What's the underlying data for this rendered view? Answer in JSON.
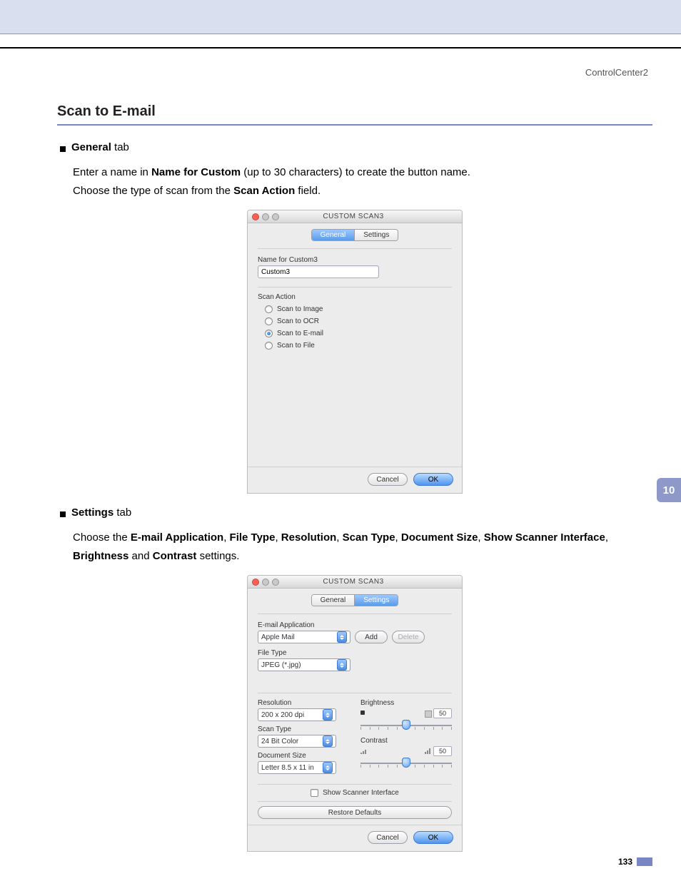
{
  "header": {
    "doc_title": "ControlCenter2"
  },
  "section": {
    "title": "Scan to E-mail"
  },
  "general_block": {
    "bullet_label_bold": "General",
    "bullet_label_rest": " tab",
    "line1_pre": "Enter a name in ",
    "line1_bold": "Name for Custom",
    "line1_post": " (up to 30 characters) to create the button name.",
    "line2_pre": "Choose the type of scan from the ",
    "line2_bold": "Scan Action",
    "line2_post": " field."
  },
  "dialog_general": {
    "title": "CUSTOM SCAN3",
    "tabs": {
      "general": "General",
      "settings": "Settings",
      "active": "general"
    },
    "name_label": "Name for Custom3",
    "name_value": "Custom3",
    "scan_action_label": "Scan Action",
    "options": [
      {
        "label": "Scan to Image",
        "checked": false
      },
      {
        "label": "Scan to OCR",
        "checked": false
      },
      {
        "label": "Scan to E-mail",
        "checked": true
      },
      {
        "label": "Scan to File",
        "checked": false
      }
    ],
    "buttons": {
      "cancel": "Cancel",
      "ok": "OK"
    }
  },
  "settings_block": {
    "bullet_label_bold": "Settings",
    "bullet_label_rest": " tab",
    "line_pre": "Choose the ",
    "b1": "E-mail Application",
    "s1": ", ",
    "b2": "File Type",
    "s2": ", ",
    "b3": "Resolution",
    "s3": ", ",
    "b4": "Scan Type",
    "s4": ", ",
    "b5": "Document Size",
    "s5": ", ",
    "b6": "Show Scanner Interface",
    "s6": ", ",
    "b7": "Brightness",
    "s7": " and ",
    "b8": "Contrast",
    "line_post": " settings."
  },
  "dialog_settings": {
    "title": "CUSTOM SCAN3",
    "tabs": {
      "general": "General",
      "settings": "Settings",
      "active": "settings"
    },
    "email_app_label": "E-mail Application",
    "email_app_value": "Apple Mail",
    "add_btn": "Add",
    "delete_btn": "Delete",
    "file_type_label": "File Type",
    "file_type_value": "JPEG (*.jpg)",
    "resolution_label": "Resolution",
    "resolution_value": "200 x 200 dpi",
    "scan_type_label": "Scan Type",
    "scan_type_value": "24 Bit Color",
    "doc_size_label": "Document Size",
    "doc_size_value": "Letter  8.5 x 11 in",
    "brightness_label": "Brightness",
    "brightness_value": "50",
    "contrast_label": "Contrast",
    "contrast_value": "50",
    "show_scanner_label": "Show Scanner Interface",
    "restore_btn": "Restore Defaults",
    "buttons": {
      "cancel": "Cancel",
      "ok": "OK"
    }
  },
  "side_tab": "10",
  "page_number": "133",
  "colors": {
    "top_band": "#dadff0",
    "rule": "#7a85c4",
    "side_tab_bg": "#8e98c9",
    "primary_btn": "#4f95ef"
  }
}
